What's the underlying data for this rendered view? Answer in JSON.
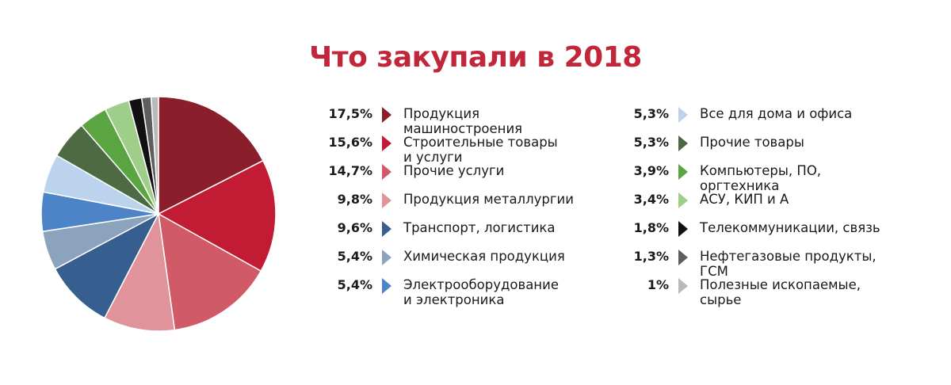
{
  "title": "Что закупали в 2018",
  "chart_data": {
    "type": "pie",
    "title": "Что закупали в 2018",
    "slices": [
      {
        "label": "Продукция машиностроения",
        "lines": [
          "Продукция",
          "машиностроения"
        ],
        "value_text": "17,5%",
        "value": 17.5,
        "color": "#8b1e2b"
      },
      {
        "label": "Строительные товары и услуги",
        "lines": [
          "Строительные товары",
          "и услуги"
        ],
        "value_text": "15,6%",
        "value": 15.6,
        "color": "#c11c34"
      },
      {
        "label": "Прочие услуги",
        "lines": [
          "Прочие услуги"
        ],
        "value_text": "14,7%",
        "value": 14.7,
        "color": "#d05a66"
      },
      {
        "label": "Продукция металлургии",
        "lines": [
          "Продукция металлургии"
        ],
        "value_text": "9,8%",
        "value": 9.8,
        "color": "#e0939b"
      },
      {
        "label": "Транспорт, логистика",
        "lines": [
          "Транспорт, логистика"
        ],
        "value_text": "9,6%",
        "value": 9.6,
        "color": "#365f8f"
      },
      {
        "label": "Химическая продукция",
        "lines": [
          "Химическая продукция"
        ],
        "value_text": "5,4%",
        "value": 5.4,
        "color": "#8ca3bd"
      },
      {
        "label": "Электрооборудование и электроника",
        "lines": [
          "Электрооборудование",
          "и электроника"
        ],
        "value_text": "5,4%",
        "value": 5.4,
        "color": "#4d84c8"
      },
      {
        "label": "Все для дома и офиса",
        "lines": [
          "Все для дома и офиса"
        ],
        "value_text": "5,3%",
        "value": 5.3,
        "color": "#bcd3ee"
      },
      {
        "label": "Прочие товары",
        "lines": [
          "Прочие товары"
        ],
        "value_text": "5,3%",
        "value": 5.3,
        "color": "#4d6a43"
      },
      {
        "label": "Компьютеры, ПО, оргтехника",
        "lines": [
          "Компьютеры, ПО,",
          "оргтехника"
        ],
        "value_text": "3,9%",
        "value": 3.9,
        "color": "#5aa542"
      },
      {
        "label": "АСУ, КИП и А",
        "lines": [
          "АСУ, КИП и А"
        ],
        "value_text": "3,4%",
        "value": 3.4,
        "color": "#9fcd8a"
      },
      {
        "label": "Телекоммуникации, связь",
        "lines": [
          "Телекоммуникации, связь"
        ],
        "value_text": "1,8%",
        "value": 1.8,
        "color": "#111111"
      },
      {
        "label": "Нефтегазовые продукты, ГСМ",
        "lines": [
          "Нефтегазовые продукты, ГСМ"
        ],
        "value_text": "1,3%",
        "value": 1.3,
        "color": "#5e5e5e"
      },
      {
        "label": "Полезные ископаемые, сырье",
        "lines": [
          "Полезные ископаемые,",
          "сырье"
        ],
        "value_text": "1%",
        "value": 1.0,
        "color": "#b9b9b9"
      }
    ],
    "legend_columns": [
      [
        0,
        1,
        2,
        3,
        4,
        5,
        6
      ],
      [
        7,
        8,
        9,
        10,
        11,
        12,
        13
      ]
    ]
  }
}
